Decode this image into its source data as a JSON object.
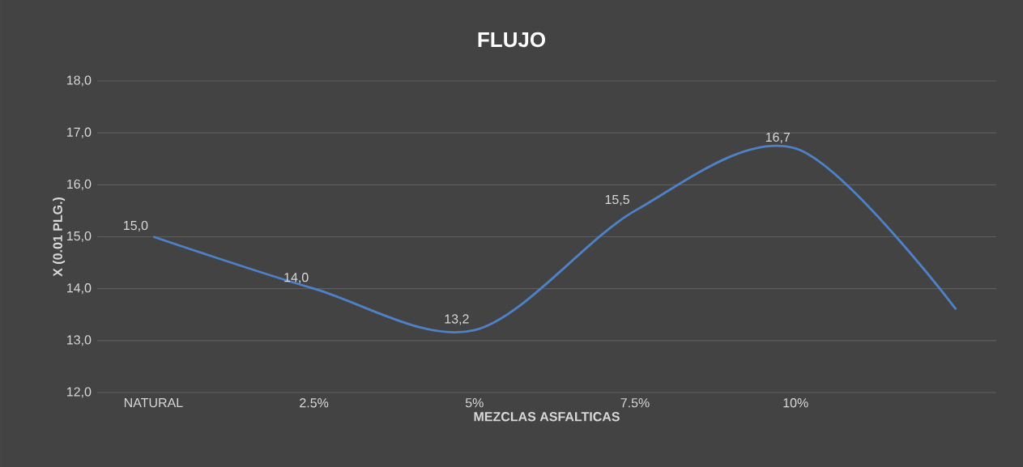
{
  "chart_data": {
    "type": "line",
    "title": "FLUJO",
    "xlabel": "MEZCLAS ASFALTICAS",
    "ylabel": "X (0.01 PLG.)",
    "categories": [
      "NATURAL",
      "2.5%",
      "5%",
      "7.5%",
      "10%",
      null
    ],
    "values": [
      15.0,
      14.0,
      13.2,
      15.5,
      16.7,
      13.6
    ],
    "value_labels": [
      "15,0",
      "14,0",
      "13,2",
      "15,5",
      "16,7",
      null
    ],
    "color": "#4f81c7",
    "ylim": [
      12,
      18
    ],
    "yticks": [
      {
        "value": 12,
        "label": "12,0"
      },
      {
        "value": 13,
        "label": "13,0"
      },
      {
        "value": 14,
        "label": "14,0"
      },
      {
        "value": 15,
        "label": "15,0"
      },
      {
        "value": 16,
        "label": "16,0"
      },
      {
        "value": 17,
        "label": "17,0"
      },
      {
        "value": 18,
        "label": "18,0"
      }
    ],
    "grid": "y",
    "marker": "none",
    "line_style": "solid"
  }
}
